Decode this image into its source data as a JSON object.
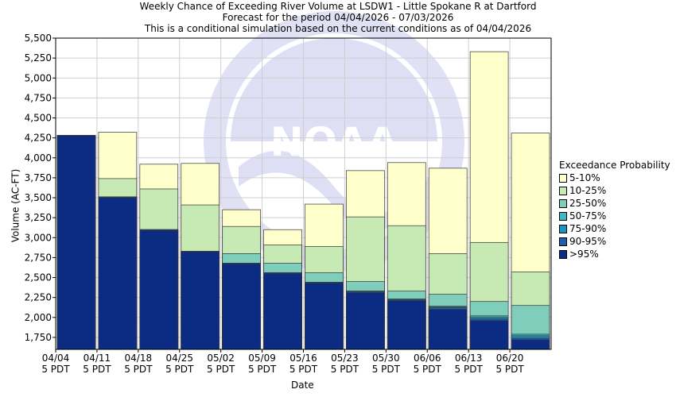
{
  "title_lines": [
    "Weekly Chance of Exceeding River Volume at LSDW1 - Little Spokane R at Dartford",
    "Forecast for the period 04/04/2026 - 07/03/2026",
    "This is a conditional simulation based on the current conditions as of 04/04/2026"
  ],
  "watermark": "NOAA",
  "chart_data": {
    "type": "bar",
    "title": "Weekly Chance of Exceeding River Volume at LSDW1 - Little Spokane R at Dartford",
    "subtitle": "Forecast for the period 04/04/2026 - 07/03/2026",
    "xlabel": "Date",
    "ylabel": "Volume (AC-FT)",
    "ylim": [
      1600,
      5500
    ],
    "yticks": [
      1750,
      2000,
      2250,
      2500,
      2750,
      3000,
      3250,
      3500,
      3750,
      4000,
      4250,
      4500,
      4750,
      5000,
      5250,
      5500
    ],
    "ytick_labels": [
      "1,750",
      "2,000",
      "2,250",
      "2,500",
      "2,750",
      "3,000",
      "3,250",
      "3,500",
      "3,750",
      "4,000",
      "4,250",
      "4,500",
      "4,750",
      "5,000",
      "5,250",
      "5,500"
    ],
    "categories": [
      "04/04",
      "04/11",
      "04/18",
      "04/25",
      "05/02",
      "05/09",
      "05/16",
      "05/23",
      "05/30",
      "06/06",
      "06/13",
      "06/20"
    ],
    "tick_label_line2": "5 PDT",
    "grid": true,
    "legend_position": "right",
    "legend_title": "Exceedance Probability",
    "series": [
      {
        "name": "5-10%",
        "color": "#ffffcc",
        "values": [
          4280,
          4320,
          3920,
          3930,
          3350,
          3100,
          3420,
          3840,
          3940,
          3870,
          5330,
          4310
        ]
      },
      {
        "name": "10-25%",
        "color": "#c7e9b4",
        "values": [
          4280,
          3740,
          3610,
          3410,
          3140,
          2910,
          2890,
          3260,
          3150,
          2800,
          2940,
          2570
        ]
      },
      {
        "name": "25-50%",
        "color": "#7fcdbb",
        "values": [
          4280,
          3510,
          3100,
          2830,
          2800,
          2680,
          2560,
          2450,
          2330,
          2290,
          2200,
          2150
        ]
      },
      {
        "name": "50-75%",
        "color": "#41b6c4",
        "values": [
          4280,
          3510,
          3100,
          2830,
          2680,
          2560,
          2440,
          2330,
          2230,
          2140,
          2020,
          1790
        ]
      },
      {
        "name": "75-90%",
        "color": "#1d91c0",
        "values": [
          4280,
          3510,
          3100,
          2830,
          2680,
          2560,
          2440,
          2330,
          2230,
          2130,
          2000,
          1770
        ]
      },
      {
        "name": "90-95%",
        "color": "#225ea8",
        "values": [
          4280,
          3510,
          3100,
          2830,
          2680,
          2560,
          2440,
          2320,
          2220,
          2120,
          1980,
          1740
        ]
      },
      {
        "name": ">95%",
        "color": "#0c2c84",
        "values": [
          4280,
          3500,
          3090,
          2820,
          2670,
          2550,
          2430,
          2310,
          2210,
          2100,
          1960,
          1720
        ]
      }
    ]
  }
}
